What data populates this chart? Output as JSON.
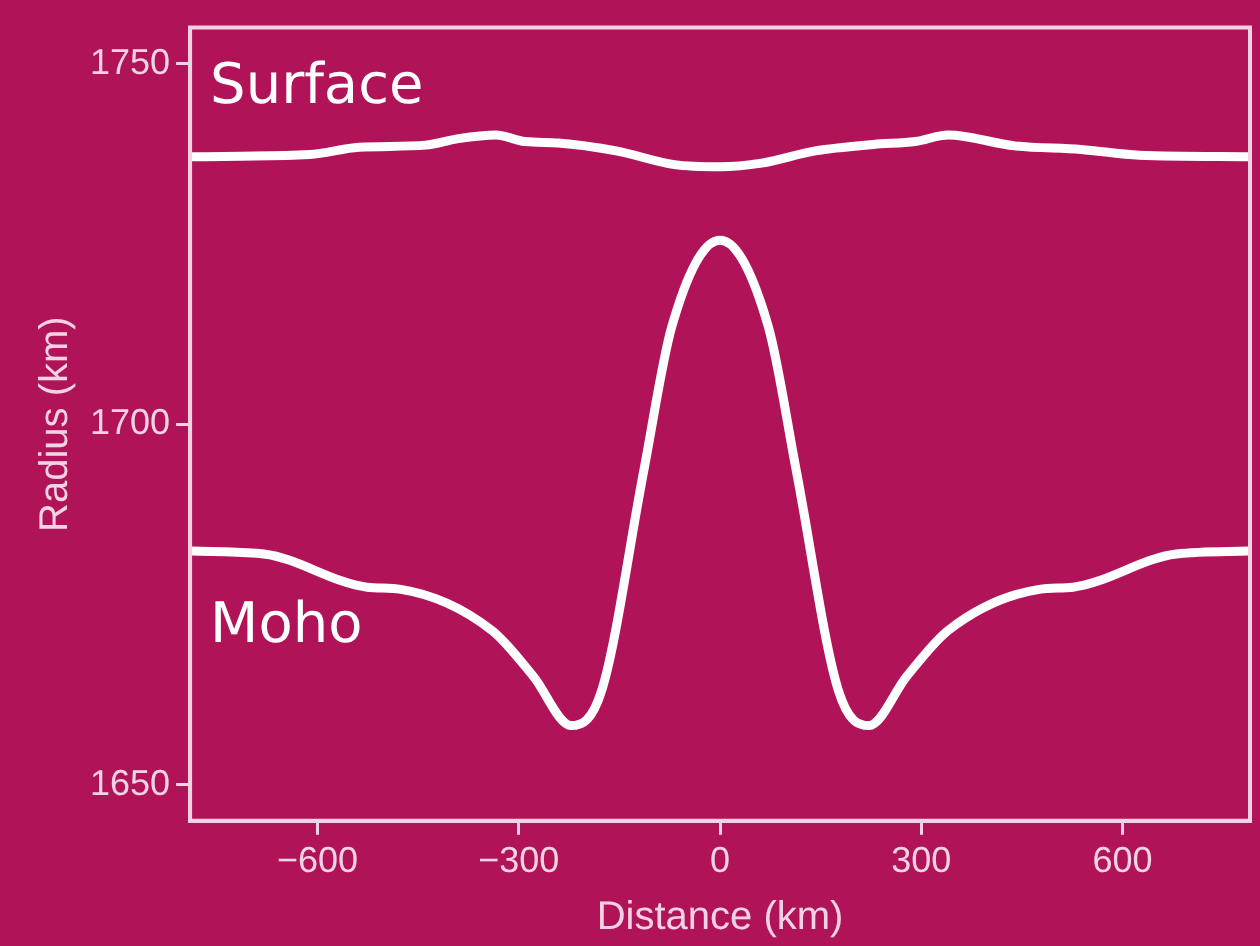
{
  "chart_data": {
    "type": "line",
    "xlabel": "Distance (km)",
    "ylabel": "Radius (km)",
    "xlim": [
      -790,
      790
    ],
    "ylim": [
      1645,
      1755
    ],
    "xticks": [
      {
        "value": -600,
        "label": "−600"
      },
      {
        "value": -300,
        "label": "−300"
      },
      0,
      300,
      600
    ],
    "yticks": [
      1650,
      1700,
      1750
    ],
    "grid": false,
    "legend": false,
    "marker": "none",
    "line_style": "solid",
    "series": [
      {
        "name": "Surface",
        "color": "#ffffff",
        "x": [
          -786,
          -612,
          -538,
          -439,
          -390,
          -334,
          -291,
          -241,
          -155,
          -68,
          0,
          62,
          142,
          229,
          291,
          340,
          439,
          538,
          625,
          786
        ],
        "values": [
          1737.1,
          1737.4,
          1738.4,
          1738.7,
          1739.6,
          1740.1,
          1739.2,
          1739.0,
          1737.9,
          1736.0,
          1735.7,
          1736.2,
          1737.9,
          1738.8,
          1739.2,
          1740.1,
          1738.6,
          1738.1,
          1737.3,
          1737.1
        ]
      },
      {
        "name": "Moho",
        "color": "#ffffff",
        "x": [
          -786,
          -680,
          -526,
          -476,
          -340,
          -278,
          -222,
          -176,
          -114,
          -72,
          0,
          72,
          114,
          176,
          222,
          278,
          340,
          476,
          526,
          680,
          786
        ],
        "values": [
          1682.4,
          1682.0,
          1677.4,
          1677.1,
          1671.4,
          1665.0,
          1658.2,
          1663.2,
          1693.4,
          1713.5,
          1725.5,
          1713.5,
          1693.4,
          1663.2,
          1658.2,
          1665.0,
          1671.4,
          1677.1,
          1677.4,
          1682.0,
          1682.4
        ]
      }
    ]
  }
}
